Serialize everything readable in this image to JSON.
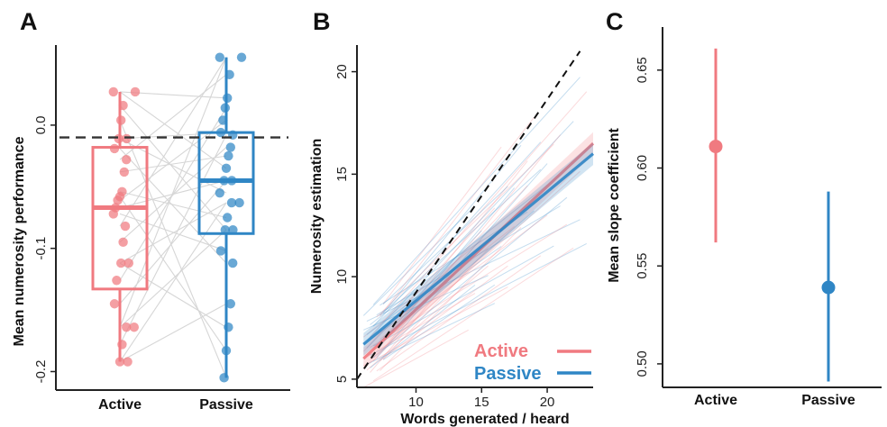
{
  "colors": {
    "active": "#f07a80",
    "passive": "#2f86c5",
    "axis": "#222222",
    "pair_line": "#d6d6d6"
  },
  "chart_data": [
    {
      "panel": "A",
      "type": "box",
      "ylabel": "Mean numerosity performance",
      "categories": [
        "Active",
        "Passive"
      ],
      "ylim": [
        -0.215,
        0.065
      ],
      "yticks": [
        0.0,
        -0.1,
        -0.2
      ],
      "ytick_labels": [
        "0.0",
        "-0.1",
        "-0.2"
      ],
      "reference_line": {
        "y": -0.01,
        "style": "dashed"
      },
      "series": [
        {
          "name": "Active",
          "box": {
            "q1": -0.133,
            "median": -0.067,
            "q3": -0.018,
            "whisker_low": -0.192,
            "whisker_high": 0.027
          },
          "points": [
            0.027,
            0.027,
            0.016,
            0.004,
            -0.011,
            -0.011,
            -0.019,
            -0.028,
            -0.038,
            -0.054,
            -0.058,
            -0.061,
            -0.067,
            -0.072,
            -0.082,
            -0.095,
            -0.112,
            -0.112,
            -0.126,
            -0.145,
            -0.164,
            -0.164,
            -0.178,
            -0.192,
            -0.192
          ]
        },
        {
          "name": "Passive",
          "box": {
            "q1": -0.088,
            "median": -0.045,
            "q3": -0.006,
            "whisker_low": -0.205,
            "whisker_high": 0.055
          },
          "points": [
            0.055,
            0.055,
            0.041,
            0.022,
            0.014,
            0.004,
            -0.006,
            -0.008,
            -0.018,
            -0.025,
            -0.035,
            -0.045,
            -0.045,
            -0.055,
            -0.063,
            -0.063,
            -0.075,
            -0.085,
            -0.085,
            -0.102,
            -0.112,
            -0.145,
            -0.164,
            -0.183,
            -0.205
          ]
        }
      ]
    },
    {
      "panel": "B",
      "type": "line",
      "xlabel": "Words generated / heard",
      "ylabel": "Numerosity estimation",
      "xlim": [
        5.5,
        23.5
      ],
      "ylim": [
        4.6,
        21.3
      ],
      "xticks": [
        10,
        15,
        20
      ],
      "yticks": [
        5,
        10,
        15,
        20
      ],
      "identity_line": {
        "from": [
          5.5,
          5.0
        ],
        "to": [
          22.5,
          21.0
        ],
        "style": "dashed"
      },
      "series": [
        {
          "name": "Active",
          "fit": {
            "x": [
              6,
              23.5
            ],
            "y": [
              6.0,
              16.5
            ]
          }
        },
        {
          "name": "Passive",
          "fit": {
            "x": [
              6,
              23.5
            ],
            "y": [
              6.7,
              16.0
            ]
          }
        }
      ],
      "legend": {
        "position": "bottom-right",
        "entries": [
          "Active",
          "Passive"
        ]
      }
    },
    {
      "panel": "C",
      "type": "pointrange",
      "ylabel": "Mean slope coefficient",
      "categories": [
        "Active",
        "Passive"
      ],
      "ylim": [
        0.488,
        0.672
      ],
      "yticks": [
        0.65,
        0.6,
        0.55,
        0.5
      ],
      "ytick_labels": [
        "0.65",
        "0.60",
        "0.55",
        "0.50"
      ],
      "series": [
        {
          "name": "Active",
          "value": 0.611,
          "low": 0.562,
          "high": 0.661
        },
        {
          "name": "Passive",
          "value": 0.539,
          "low": 0.491,
          "high": 0.588
        }
      ]
    }
  ]
}
